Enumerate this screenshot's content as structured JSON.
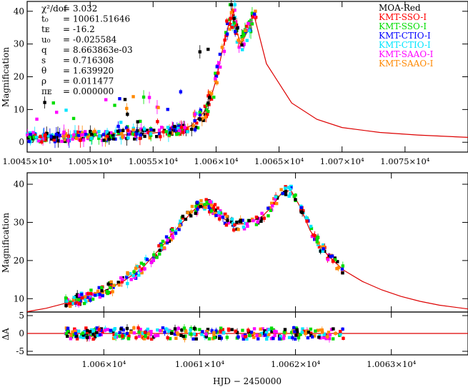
{
  "chart_data": [
    {
      "type": "scatter",
      "panel": "top",
      "title": "",
      "xlabel": "",
      "ylabel": "Magnification",
      "xlim": [
        10045,
        10080
      ],
      "ylim": [
        -3,
        43
      ],
      "x_ticks": [
        {
          "value": 10045,
          "label": "1.0045×10⁴"
        },
        {
          "value": 10050,
          "label": "1.005×10⁴"
        },
        {
          "value": 10055,
          "label": "1.0055×10⁴"
        },
        {
          "value": 10060,
          "label": "1.006×10⁴"
        },
        {
          "value": 10065,
          "label": "1.0065×10⁴"
        },
        {
          "value": 10070,
          "label": "1.007×10⁴"
        },
        {
          "value": 10075,
          "label": "1.0075×10⁴"
        }
      ],
      "y_ticks": [
        0,
        10,
        20,
        30,
        40
      ],
      "model_params": [
        {
          "name": "χ²/dof",
          "value": "3.032"
        },
        {
          "name": "t₀",
          "value": "10061.51646"
        },
        {
          "name": "tᴇ",
          "value": "-16.2"
        },
        {
          "name": "u₀",
          "value": "-0.025584"
        },
        {
          "name": "q",
          "value": "8.663863e-03"
        },
        {
          "name": "s",
          "value": "0.716308"
        },
        {
          "name": "θ",
          "value": "1.639920"
        },
        {
          "name": "ρ",
          "value": "0.011477"
        },
        {
          "name": "πᴇ",
          "value": "0.000000"
        }
      ],
      "legend_position": "top-right",
      "series": [
        {
          "name": "MOA-Red",
          "color": "#000000"
        },
        {
          "name": "KMT-SSO-I",
          "color": "#ff0000"
        },
        {
          "name": "KMT-SSO-I",
          "color": "#00dd00"
        },
        {
          "name": "KMT-CTIO-I",
          "color": "#0000ff"
        },
        {
          "name": "KMT-CTIO-I",
          "color": "#00e5ff"
        },
        {
          "name": "KMT-SAAO-I",
          "color": "#ff00ff"
        },
        {
          "name": "KMT-SAAO-I",
          "color": "#ff8800"
        }
      ],
      "model_color": "#dd0000",
      "model_curve": {
        "x": [
          10045,
          10048,
          10051,
          10053,
          10055,
          10057,
          10058,
          10059,
          10059.5,
          10060,
          10060.5,
          10061,
          10061.3,
          10061.5,
          10061.8,
          10062,
          10062.5,
          10063,
          10064,
          10066,
          10068,
          10070,
          10073,
          10076,
          10080
        ],
        "y": [
          1.5,
          1.7,
          2.0,
          2.3,
          2.8,
          3.8,
          5.0,
          9.0,
          12.5,
          19.0,
          28.0,
          36.0,
          38.0,
          35.0,
          32.0,
          30.0,
          34.0,
          39.0,
          24.0,
          12.0,
          7.0,
          4.5,
          3.0,
          2.2,
          1.5
        ]
      }
    },
    {
      "type": "scatter",
      "panel": "middle",
      "title": "",
      "xlabel": "",
      "ylabel": "Magnification",
      "xlim": [
        10059.2,
        10063.8
      ],
      "ylim": [
        6.5,
        43
      ],
      "x_ticks": [
        {
          "value": 10060,
          "label": "1.006×10⁴"
        },
        {
          "value": 10061,
          "label": "1.0061×10⁴"
        },
        {
          "value": 10062,
          "label": "1.0062×10⁴"
        },
        {
          "value": 10063,
          "label": "1.0063×10⁴"
        }
      ],
      "y_ticks": [
        10,
        20,
        30,
        40
      ],
      "model_curve": {
        "x": [
          10059.2,
          10059.4,
          10059.6,
          10059.8,
          10060.0,
          10060.2,
          10060.4,
          10060.6,
          10060.8,
          10060.95,
          10061.05,
          10061.15,
          10061.25,
          10061.35,
          10061.45,
          10061.55,
          10061.65,
          10061.75,
          10061.85,
          10061.95,
          10062.05,
          10062.15,
          10062.25,
          10062.35,
          10062.5,
          10062.7,
          10062.9,
          10063.1,
          10063.3,
          10063.5,
          10063.8
        ],
        "y": [
          6.6,
          7.5,
          8.8,
          10.2,
          12.0,
          14.5,
          18.0,
          23.5,
          29.5,
          33.5,
          34.8,
          33.5,
          31.0,
          29.5,
          29.6,
          30.3,
          31.5,
          34.0,
          37.5,
          38.5,
          34.0,
          28.0,
          24.0,
          21.0,
          17.5,
          14.5,
          12.3,
          10.6,
          9.3,
          8.3,
          7.3
        ]
      }
    },
    {
      "type": "scatter",
      "panel": "bottom",
      "title": "",
      "xlabel": "HJD − 2450000",
      "ylabel": "ΔA",
      "xlim": [
        10059.2,
        10063.8
      ],
      "ylim": [
        -6,
        6
      ],
      "y_ticks": [
        -5,
        0,
        5
      ],
      "zero_line": 0
    }
  ]
}
